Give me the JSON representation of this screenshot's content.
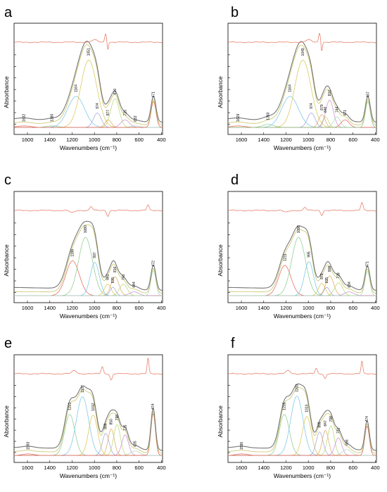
{
  "figure": {
    "xlabel": "Wavenumbers (cm⁻¹)",
    "ylabel": "Absorbance"
  },
  "colors": {
    "envelope": "#777777",
    "residual": "#e8806c",
    "baseline": "#2a8a3a",
    "components": [
      "#e06050",
      "#86c98a",
      "#6ec3e6",
      "#d8c24a",
      "#9aa0dc",
      "#e0a45a",
      "#b5d66a",
      "#c98ad0",
      "#a8d8c0"
    ]
  },
  "chart_data": [
    {
      "type": "line",
      "panel": "a",
      "xlim": [
        1720,
        390
      ],
      "x_ticks": [
        1600,
        1400,
        1200,
        1000,
        800,
        600,
        400
      ],
      "xlabel": "Wavenumbers (cm⁻¹)",
      "ylabel": "Absorbance",
      "peaks": [
        {
          "label": "1632",
          "center": 1632,
          "height": 0.02,
          "width": 60
        },
        {
          "label": "1380",
          "center": 1380,
          "height": 0.02,
          "width": 50
        },
        {
          "label": "1164",
          "center": 1164,
          "height": 0.41,
          "width": 75
        },
        {
          "label": "1051",
          "center": 1051,
          "height": 0.89,
          "width": 72
        },
        {
          "label": "974",
          "center": 974,
          "height": 0.19,
          "width": 35
        },
        {
          "label": "877",
          "center": 877,
          "height": 0.1,
          "width": 28
        },
        {
          "label": "816",
          "center": 816,
          "height": 0.38,
          "width": 38
        },
        {
          "label": "725",
          "center": 725,
          "height": 0.1,
          "width": 38
        },
        {
          "label": "633",
          "center": 633,
          "height": 0.02,
          "width": 40
        },
        {
          "label": "471",
          "center": 471,
          "height": 0.34,
          "width": 22
        }
      ]
    },
    {
      "type": "line",
      "panel": "b",
      "xlim": [
        1720,
        390
      ],
      "x_ticks": [
        1600,
        1400,
        1200,
        1000,
        800,
        600,
        400
      ],
      "xlabel": "Wavenumbers (cm⁻¹)",
      "ylabel": "Absorbance",
      "peaks": [
        {
          "label": "1629",
          "center": 1629,
          "height": 0.02,
          "width": 60
        },
        {
          "label": "1360",
          "center": 1360,
          "height": 0.04,
          "width": 50
        },
        {
          "label": "1164",
          "center": 1164,
          "height": 0.41,
          "width": 75
        },
        {
          "label": "1049",
          "center": 1049,
          "height": 0.89,
          "width": 72
        },
        {
          "label": "974",
          "center": 974,
          "height": 0.19,
          "width": 35
        },
        {
          "label": "879",
          "center": 879,
          "height": 0.17,
          "width": 28
        },
        {
          "label": "846",
          "center": 846,
          "height": 0.14,
          "width": 26
        },
        {
          "label": "810",
          "center": 810,
          "height": 0.36,
          "width": 34
        },
        {
          "label": "744",
          "center": 744,
          "height": 0.14,
          "width": 30
        },
        {
          "label": "671",
          "center": 671,
          "height": 0.1,
          "width": 35
        },
        {
          "label": "467",
          "center": 467,
          "height": 0.34,
          "width": 22
        }
      ]
    },
    {
      "type": "line",
      "panel": "c",
      "xlim": [
        1720,
        390
      ],
      "x_ticks": [
        1600,
        1400,
        1200,
        1000,
        800,
        600,
        400
      ],
      "xlabel": "Wavenumbers (cm⁻¹)",
      "ylabel": "Absorbance",
      "peaks": [
        {
          "label": "1196",
          "center": 1196,
          "height": 0.46,
          "width": 60
        },
        {
          "label": "1080",
          "center": 1080,
          "height": 0.77,
          "width": 62
        },
        {
          "label": "997",
          "center": 997,
          "height": 0.44,
          "width": 40
        },
        {
          "label": "881",
          "center": 881,
          "height": 0.15,
          "width": 30
        },
        {
          "label": "835",
          "center": 835,
          "height": 0.11,
          "width": 25
        },
        {
          "label": "816",
          "center": 816,
          "height": 0.25,
          "width": 35
        },
        {
          "label": "741",
          "center": 741,
          "height": 0.15,
          "width": 35
        },
        {
          "label": "644",
          "center": 644,
          "height": 0.05,
          "width": 40
        },
        {
          "label": "472",
          "center": 472,
          "height": 0.33,
          "width": 22
        }
      ]
    },
    {
      "type": "line",
      "panel": "d",
      "xlim": [
        1720,
        390
      ],
      "x_ticks": [
        1600,
        1400,
        1200,
        1000,
        800,
        600,
        400
      ],
      "xlabel": "Wavenumbers (cm⁻¹)",
      "ylabel": "Absorbance",
      "peaks": [
        {
          "label": "1211",
          "center": 1211,
          "height": 0.4,
          "width": 55
        },
        {
          "label": "1088",
          "center": 1088,
          "height": 0.77,
          "width": 62
        },
        {
          "label": "995",
          "center": 995,
          "height": 0.45,
          "width": 40
        },
        {
          "label": "879",
          "center": 879,
          "height": 0.16,
          "width": 30
        },
        {
          "label": "835",
          "center": 835,
          "height": 0.11,
          "width": 25
        },
        {
          "label": "808",
          "center": 808,
          "height": 0.26,
          "width": 35
        },
        {
          "label": "729",
          "center": 729,
          "height": 0.17,
          "width": 35
        },
        {
          "label": "634",
          "center": 634,
          "height": 0.05,
          "width": 40
        },
        {
          "label": "471",
          "center": 471,
          "height": 0.32,
          "width": 22
        }
      ]
    },
    {
      "type": "line",
      "panel": "e",
      "xlim": [
        1720,
        390
      ],
      "x_ticks": [
        1600,
        1400,
        1200,
        1000,
        800,
        600,
        400
      ],
      "xlabel": "Wavenumbers (cm⁻¹)",
      "ylabel": "Absorbance",
      "peaks": [
        {
          "label": "1593",
          "center": 1593,
          "height": 0.02,
          "width": 50
        },
        {
          "label": "1221",
          "center": 1221,
          "height": 0.56,
          "width": 45
        },
        {
          "label": "1107",
          "center": 1107,
          "height": 0.8,
          "width": 55
        },
        {
          "label": "1012",
          "center": 1012,
          "height": 0.55,
          "width": 40
        },
        {
          "label": "899",
          "center": 899,
          "height": 0.3,
          "width": 30
        },
        {
          "label": "850",
          "center": 850,
          "height": 0.36,
          "width": 28
        },
        {
          "label": "798",
          "center": 798,
          "height": 0.42,
          "width": 30
        },
        {
          "label": "725",
          "center": 725,
          "height": 0.28,
          "width": 30
        },
        {
          "label": "635",
          "center": 635,
          "height": 0.06,
          "width": 40
        },
        {
          "label": "474",
          "center": 474,
          "height": 0.57,
          "width": 20
        }
      ]
    },
    {
      "type": "line",
      "panel": "f",
      "xlim": [
        1720,
        390
      ],
      "x_ticks": [
        1600,
        1400,
        1200,
        1000,
        800,
        600,
        400
      ],
      "xlabel": "Wavenumbers (cm⁻¹)",
      "ylabel": "Absorbance",
      "peaks": [
        {
          "label": "1596",
          "center": 1596,
          "height": 0.02,
          "width": 50
        },
        {
          "label": "1215",
          "center": 1215,
          "height": 0.56,
          "width": 45
        },
        {
          "label": "1103",
          "center": 1103,
          "height": 0.81,
          "width": 55
        },
        {
          "label": "1014",
          "center": 1014,
          "height": 0.53,
          "width": 40
        },
        {
          "label": "899",
          "center": 899,
          "height": 0.32,
          "width": 30
        },
        {
          "label": "847",
          "center": 847,
          "height": 0.34,
          "width": 28
        },
        {
          "label": "798",
          "center": 798,
          "height": 0.4,
          "width": 30
        },
        {
          "label": "731",
          "center": 731,
          "height": 0.24,
          "width": 30
        },
        {
          "label": "656",
          "center": 656,
          "height": 0.08,
          "width": 40
        },
        {
          "label": "474",
          "center": 474,
          "height": 0.4,
          "width": 20
        }
      ]
    }
  ]
}
